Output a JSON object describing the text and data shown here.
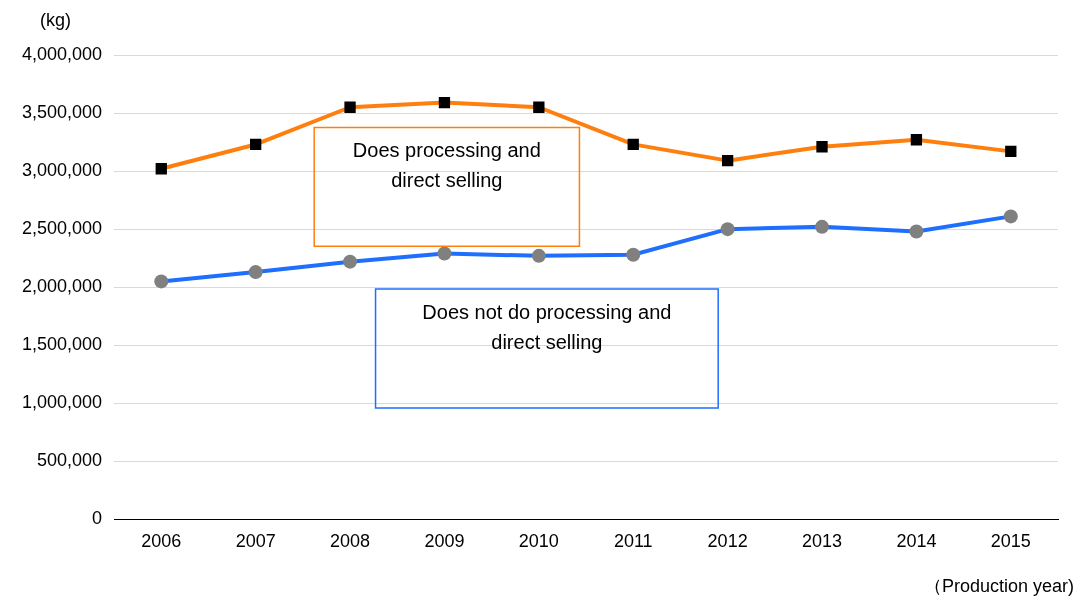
{
  "chart_data": {
    "type": "line",
    "ylabel": "(kg)",
    "xlabel": "（Production year)",
    "categories": [
      "2006",
      "2007",
      "2008",
      "2009",
      "2010",
      "2011",
      "2012",
      "2013",
      "2014",
      "2015"
    ],
    "series": [
      {
        "name": "Does processing and direct selling",
        "color": "#ff7f0e",
        "marker": "square",
        "values": [
          3020000,
          3230000,
          3550000,
          3590000,
          3550000,
          3230000,
          3090000,
          3210000,
          3270000,
          3170000
        ]
      },
      {
        "name": "Does not do processing and direct selling",
        "color": "#1f6fff",
        "marker": "circle",
        "values": [
          2050000,
          2130000,
          2220000,
          2290000,
          2270000,
          2280000,
          2500000,
          2520000,
          2480000,
          2610000
        ]
      }
    ],
    "ylim": [
      0,
      4000000
    ],
    "yticks": [
      0,
      {
        "value": 500000,
        "label": "500,000"
      },
      {
        "value": 1000000,
        "label": "1,000,000"
      },
      {
        "value": 1500000,
        "label": "1,500,000"
      },
      {
        "value": 2000000,
        "label": "2,000,000"
      },
      {
        "value": 2500000,
        "label": "2,500,000"
      },
      {
        "value": 3000000,
        "label": "3,000,000"
      },
      {
        "value": 3500000,
        "label": "3,500,000"
      },
      {
        "value": 4000000,
        "label": "4,000,000"
      }
    ],
    "grid": "y",
    "legend": false,
    "line_style": "solid"
  }
}
